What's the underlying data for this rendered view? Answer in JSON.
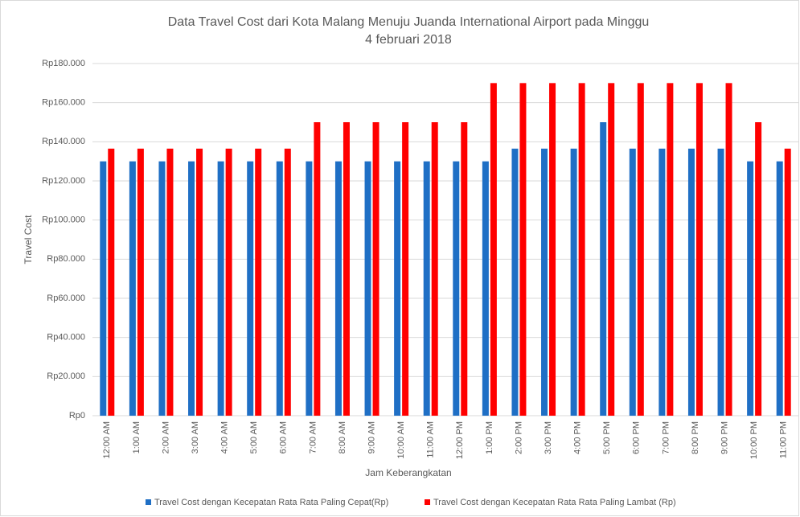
{
  "chart_data": {
    "type": "bar",
    "title": [
      "Data Travel Cost dari Kota Malang Menuju Juanda International Airport pada Minggu",
      "4 februari 2018"
    ],
    "x_label": "Jam Keberangkatan",
    "y_label": "Travel Cost",
    "categories": [
      "12:00 AM",
      "1:00 AM",
      "2:00 AM",
      "3:00 AM",
      "4:00 AM",
      "5:00 AM",
      "6:00 AM",
      "7:00 AM",
      "8:00 AM",
      "9:00 AM",
      "10:00 AM",
      "11:00 AM",
      "12:00 PM",
      "1:00 PM",
      "2:00 PM",
      "3:00 PM",
      "4:00 PM",
      "5:00 PM",
      "6:00 PM",
      "7:00 PM",
      "8:00 PM",
      "9:00 PM",
      "10:00 PM",
      "11:00 PM"
    ],
    "series": [
      {
        "name": "Travel Cost dengan Kecepatan Rata Rata Paling Cepat(Rp)",
        "color": "#1f6fc5",
        "values": [
          130000,
          130000,
          130000,
          130000,
          130000,
          130000,
          130000,
          130000,
          130000,
          130000,
          130000,
          130000,
          130000,
          130000,
          136500,
          136500,
          136500,
          150000,
          136500,
          136500,
          136500,
          136500,
          130000,
          130000
        ]
      },
      {
        "name": "Travel Cost dengan Kecepatan Rata Rata Paling Lambat (Rp)",
        "color": "#ff0000",
        "values": [
          136500,
          136500,
          136500,
          136500,
          136500,
          136500,
          136500,
          150000,
          150000,
          150000,
          150000,
          150000,
          150000,
          170000,
          170000,
          170000,
          170000,
          170000,
          170000,
          170000,
          170000,
          170000,
          150000,
          136500
        ]
      }
    ],
    "ylim": [
      0,
      180000
    ],
    "yticks": [
      {
        "value": 0,
        "label": "Rp0"
      },
      {
        "value": 20000,
        "label": "Rp20.000"
      },
      {
        "value": 40000,
        "label": "Rp40.000"
      },
      {
        "value": 60000,
        "label": "Rp60.000"
      },
      {
        "value": 80000,
        "label": "Rp80.000"
      },
      {
        "value": 100000,
        "label": "Rp100.000"
      },
      {
        "value": 120000,
        "label": "Rp120.000"
      },
      {
        "value": 140000,
        "label": "Rp140.000"
      },
      {
        "value": 160000,
        "label": "Rp160.000"
      },
      {
        "value": 180000,
        "label": "Rp180.000"
      }
    ],
    "grid": true,
    "legend": "bottom"
  }
}
